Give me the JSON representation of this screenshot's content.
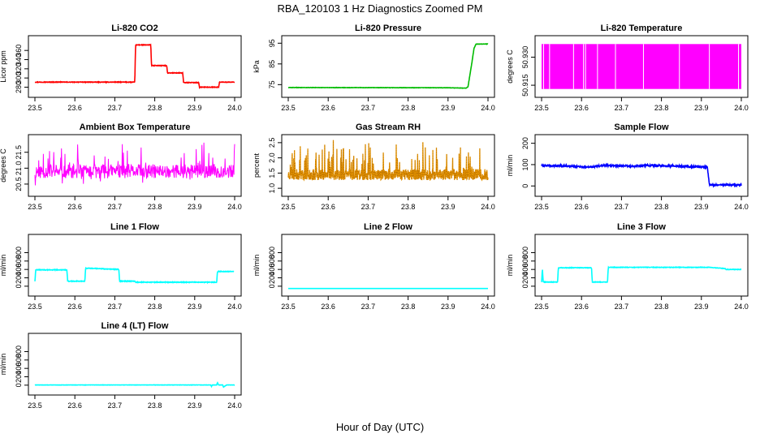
{
  "figure": {
    "title": "RBA_120103  1 Hz Diagnostics Zoomed PM",
    "xlabel": "Hour of Day (UTC)"
  },
  "chart_data": [
    {
      "type": "line",
      "title": "Li-820 CO2",
      "ylabel": "Licor ppm",
      "color": "#ff0000",
      "xlim": [
        23.5,
        24.0
      ],
      "ylim": [
        272,
        378
      ],
      "yticks": [
        "280",
        "300",
        "320",
        "340",
        "360"
      ],
      "ytick_values": [
        280,
        300,
        320,
        340,
        360
      ],
      "xticks": [
        "23.5",
        "23.6",
        "23.7",
        "23.8",
        "23.9",
        "24.0"
      ],
      "noise": 0.6,
      "series": [
        {
          "x": [
            23.5,
            23.75,
            23.752,
            23.79,
            23.792,
            23.83,
            23.832,
            23.87,
            23.872,
            23.91,
            23.912,
            23.96,
            23.962,
            24.0
          ],
          "y": [
            291,
            291,
            372,
            372,
            327,
            327,
            311,
            311,
            290,
            290,
            280,
            280,
            291,
            291
          ]
        }
      ]
    },
    {
      "type": "line",
      "title": "Li-820 Pressure",
      "ylabel": "kPa",
      "color": "#00bb00",
      "xlim": [
        23.5,
        24.0
      ],
      "ylim": [
        72,
        95.5
      ],
      "yticks": [
        "75",
        "85",
        "95"
      ],
      "ytick_values": [
        75,
        85,
        95
      ],
      "xticks": [
        "23.5",
        "23.6",
        "23.7",
        "23.8",
        "23.9",
        "24.0"
      ],
      "noise": 0.08,
      "series": [
        {
          "x": [
            23.5,
            23.9,
            23.945,
            23.95,
            23.96,
            23.965,
            23.97,
            24.0
          ],
          "y": [
            73.6,
            73.5,
            73.3,
            74.0,
            86.0,
            92.5,
            94.6,
            94.6
          ]
        }
      ]
    },
    {
      "type": "area",
      "title": "Li-820 Temperature",
      "ylabel": "degrees C",
      "color": "#ff00ff",
      "xlim": [
        23.5,
        24.0
      ],
      "ylim": [
        50.912,
        50.938
      ],
      "yticks": [
        "50.915",
        "50.930"
      ],
      "ytick_values": [
        50.915,
        50.93
      ],
      "xticks": [
        "23.5",
        "23.6",
        "23.7",
        "23.8",
        "23.9",
        "24.0"
      ],
      "band": [
        50.913,
        50.937
      ],
      "gaps": [
        23.505,
        23.52,
        23.58,
        23.605,
        23.61,
        23.64,
        23.685,
        23.755,
        23.845,
        23.92,
        23.993
      ]
    },
    {
      "type": "line",
      "title": "Ambient Box Temperature",
      "ylabel": "degrees C",
      "color": "#ff00ff",
      "xlim": [
        23.5,
        24.0
      ],
      "ylim": [
        20.32,
        21.85
      ],
      "yticks": [
        "20.5",
        "21.0",
        "21.5"
      ],
      "ytick_values": [
        20.5,
        21.0,
        21.5
      ],
      "xticks": [
        "23.5",
        "23.6",
        "23.7",
        "23.8",
        "23.9",
        "24.0"
      ],
      "random": {
        "base": 20.9,
        "spread": 0.22,
        "spike": 0.75,
        "n": 520,
        "seed": 11
      }
    },
    {
      "type": "scatter",
      "title": "Gas Stream RH",
      "ylabel": "percent",
      "color": "#e69500",
      "xlim": [
        23.5,
        24.0
      ],
      "ylim": [
        0.95,
        2.55
      ],
      "yticks": [
        "1.0",
        "1.5",
        "2.0",
        "2.5"
      ],
      "ytick_values": [
        1.0,
        1.5,
        2.0,
        2.5
      ],
      "xticks": [
        "23.5",
        "23.6",
        "23.7",
        "23.8",
        "23.9",
        "24.0"
      ],
      "random": {
        "base": 1.45,
        "spread": 0.18,
        "spike": 1.0,
        "n": 900,
        "seed": 23
      }
    },
    {
      "type": "line",
      "title": "Sample Flow",
      "ylabel": "ml/min",
      "color": "#0000ff",
      "xlim": [
        23.5,
        24.0
      ],
      "ylim": [
        -18,
        210
      ],
      "yticks": [
        "0",
        "100",
        "200"
      ],
      "ytick_values": [
        0,
        100,
        200
      ],
      "xticks": [
        "23.5",
        "23.6",
        "23.7",
        "23.8",
        "23.9",
        "24.0"
      ],
      "noise": 4,
      "series": [
        {
          "x": [
            23.5,
            23.58,
            23.6,
            23.64,
            23.66,
            23.75,
            23.76,
            23.91,
            23.915,
            23.92,
            24.0
          ],
          "y": [
            95,
            94,
            88,
            92,
            96,
            92,
            97,
            89,
            89,
            5,
            5
          ]
        }
      ]
    },
    {
      "type": "line",
      "title": "Line 1 Flow",
      "ylabel": "ml/min",
      "color": "#00ffff",
      "xlim": [
        23.5,
        24.0
      ],
      "ylim": [
        -80,
        1080
      ],
      "yticks": [
        "0",
        "200",
        "400",
        "600",
        "800"
      ],
      "ytick_values": [
        0,
        200,
        400,
        600,
        800
      ],
      "xticks": [
        "23.5",
        "23.6",
        "23.7",
        "23.8",
        "23.9",
        "24.0"
      ],
      "noise": 8,
      "series": [
        {
          "x": [
            23.5,
            23.502,
            23.58,
            23.582,
            23.625,
            23.627,
            23.71,
            23.712,
            23.75,
            23.752,
            23.955,
            23.957,
            23.998
          ],
          "y": [
            120,
            390,
            390,
            120,
            120,
            430,
            400,
            120,
            120,
            95,
            95,
            350,
            350
          ]
        }
      ]
    },
    {
      "type": "line",
      "title": "Line 2 Flow",
      "ylabel": "ml/min",
      "color": "#00ffff",
      "xlim": [
        23.5,
        24.0
      ],
      "ylim": [
        -80,
        1080
      ],
      "yticks": [
        "0",
        "200",
        "400",
        "600",
        "800"
      ],
      "ytick_values": [
        0,
        200,
        400,
        600,
        800
      ],
      "xticks": [
        "23.5",
        "23.6",
        "23.7",
        "23.8",
        "23.9",
        "24.0"
      ],
      "noise": 0,
      "series": [
        {
          "x": [
            23.5,
            24.0
          ],
          "y": [
            -55,
            -55
          ]
        }
      ]
    },
    {
      "type": "line",
      "title": "Line 3 Flow",
      "ylabel": "ml/min",
      "color": "#00ffff",
      "xlim": [
        23.5,
        24.0
      ],
      "ylim": [
        -80,
        1080
      ],
      "yticks": [
        "0",
        "200",
        "400",
        "600",
        "800"
      ],
      "ytick_values": [
        0,
        200,
        400,
        600,
        800
      ],
      "xticks": [
        "23.5",
        "23.6",
        "23.7",
        "23.8",
        "23.9",
        "24.0"
      ],
      "noise": 6,
      "series": [
        {
          "x": [
            23.5,
            23.502,
            23.504,
            23.54,
            23.542,
            23.625,
            23.627,
            23.665,
            23.667,
            23.92,
            23.96,
            23.962,
            24.0
          ],
          "y": [
            100,
            420,
            100,
            100,
            440,
            440,
            100,
            100,
            450,
            450,
            420,
            400,
            400
          ]
        }
      ]
    },
    {
      "type": "line",
      "title": "Line 4 (LT) Flow",
      "ylabel": "ml/min",
      "color": "#00ffff",
      "xlim": [
        23.5,
        24.0
      ],
      "ylim": [
        -80,
        1080
      ],
      "yticks": [
        "0",
        "200",
        "400",
        "600",
        "800"
      ],
      "ytick_values": [
        0,
        200,
        400,
        600,
        800
      ],
      "xticks": [
        "23.5",
        "23.6",
        "23.7",
        "23.8",
        "23.9",
        "24.0"
      ],
      "noise": 3,
      "series": [
        {
          "x": [
            23.5,
            23.94,
            23.942,
            23.944,
            23.955,
            23.957,
            23.96,
            23.97,
            23.972,
            23.98,
            24.0
          ],
          "y": [
            5,
            5,
            -30,
            5,
            5,
            60,
            5,
            5,
            -45,
            5,
            5
          ]
        }
      ]
    }
  ]
}
